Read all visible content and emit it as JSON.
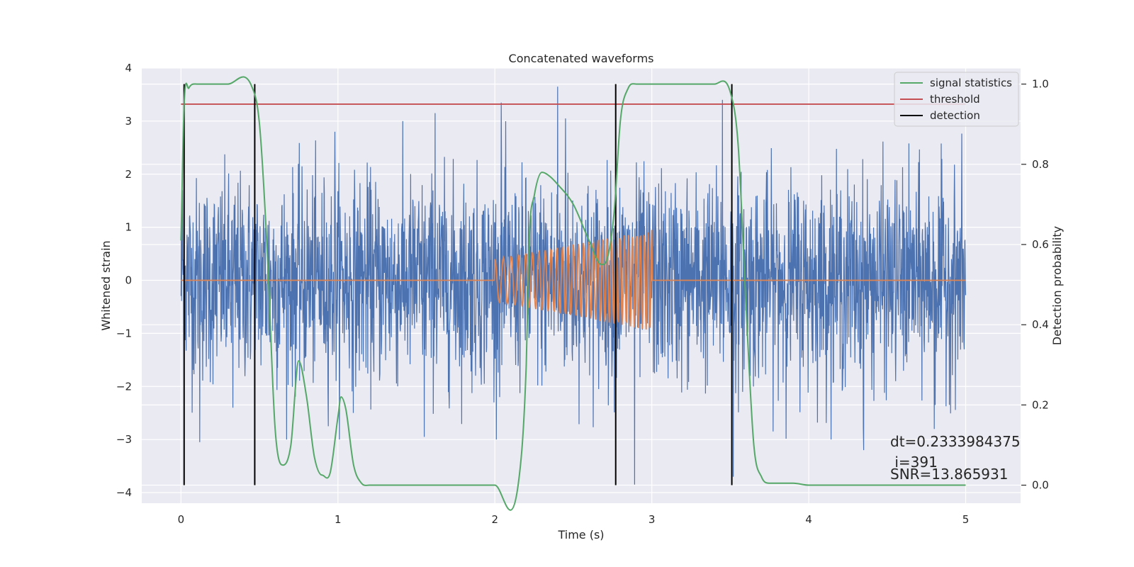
{
  "chart_data": {
    "type": "line",
    "title": "Concatenated waveforms",
    "xlabel": "Time (s)",
    "ylabel_left": "Whitened strain",
    "ylabel_right": "Detection probability",
    "xlim": [
      -0.25,
      5.35
    ],
    "ylim_left": [
      -4.2,
      4.0
    ],
    "ylim_right": [
      -0.045,
      1.04
    ],
    "x_ticks": [
      0,
      1,
      2,
      3,
      4,
      5
    ],
    "x_tick_labels": [
      "0",
      "1",
      "2",
      "3",
      "4",
      "5"
    ],
    "y_left_ticks": [
      -4,
      -3,
      -2,
      -1,
      0,
      1,
      2,
      3,
      4
    ],
    "y_left_tick_labels": [
      "−4",
      "−3",
      "−2",
      "−1",
      "0",
      "1",
      "2",
      "3",
      "4"
    ],
    "y_right_ticks": [
      0.0,
      0.2,
      0.4,
      0.6,
      0.8,
      1.0
    ],
    "y_right_tick_labels": [
      "0.0",
      "0.2",
      "0.4",
      "0.6",
      "0.8",
      "1.0"
    ],
    "grid": true,
    "legend_position": "top-right",
    "legend": [
      {
        "label": "signal statistics",
        "color": "#55a868"
      },
      {
        "label": "threshold",
        "color": "#c44e52"
      },
      {
        "label": "detection",
        "color": "#000000"
      }
    ],
    "colors": {
      "noise": "#4c72b0",
      "injected_signal": "#dd8452",
      "signal_statistics": "#55a868",
      "threshold": "#c44e52",
      "detection": "#000000",
      "plot_background": "#eaeaf2",
      "grid": "#ffffff"
    },
    "noise_series": {
      "axis": "left",
      "x_range": [
        0,
        5
      ],
      "amplitude_typical": 2.5,
      "peaks": [
        {
          "x": 0.01,
          "y": 1.7
        },
        {
          "x": 0.12,
          "y": -3.05
        },
        {
          "x": 0.33,
          "y": -2.4
        },
        {
          "x": 0.98,
          "y": 2.8
        },
        {
          "x": 1.55,
          "y": -2.95
        },
        {
          "x": 1.62,
          "y": 3.15
        },
        {
          "x": 2.04,
          "y": 3.35
        },
        {
          "x": 2.4,
          "y": 3.65
        },
        {
          "x": 2.45,
          "y": 3.05
        },
        {
          "x": 2.89,
          "y": -3.85
        },
        {
          "x": 3.45,
          "y": 3.4
        },
        {
          "x": 3.52,
          "y": -3.7
        },
        {
          "x": 4.35,
          "y": -3.2
        },
        {
          "x": 4.8,
          "y": -2.8
        }
      ]
    },
    "injected_signal": {
      "axis": "left",
      "x_start": 2.0,
      "x_end": 3.0,
      "amplitude_start": 0.4,
      "amplitude_end": 0.95,
      "baseline": 0.0
    },
    "signal_statistics": {
      "axis": "right",
      "x": [
        0,
        0.02,
        0.05,
        0.1,
        0.3,
        0.45,
        0.5,
        0.55,
        0.6,
        0.65,
        0.7,
        0.75,
        0.8,
        0.85,
        0.9,
        0.95,
        1.0,
        1.02,
        1.05,
        1.1,
        1.15,
        1.2,
        1.5,
        2.0,
        2.15,
        2.2,
        2.22,
        2.25,
        2.3,
        2.35,
        2.4,
        2.5,
        2.6,
        2.68,
        2.72,
        2.76,
        2.8,
        2.85,
        2.9,
        3.0,
        3.4,
        3.5,
        3.55,
        3.6,
        3.65,
        3.7,
        3.75,
        3.9,
        4.0,
        5.0
      ],
      "y": [
        0.61,
        0.95,
        0.99,
        1.0,
        1.0,
        0.995,
        0.9,
        0.58,
        0.14,
        0.05,
        0.1,
        0.31,
        0.22,
        0.07,
        0.025,
        0.03,
        0.17,
        0.22,
        0.19,
        0.05,
        0.005,
        0.0,
        0.0,
        0.0,
        0.005,
        0.3,
        0.62,
        0.72,
        0.78,
        0.77,
        0.75,
        0.7,
        0.61,
        0.55,
        0.57,
        0.68,
        0.91,
        0.99,
        1.0,
        1.0,
        1.0,
        0.98,
        0.85,
        0.45,
        0.1,
        0.02,
        0.005,
        0.005,
        0.0,
        0.0
      ]
    },
    "threshold": {
      "axis": "right",
      "value": 0.95,
      "x_range": [
        0,
        5
      ]
    },
    "detections": [
      0.02,
      0.47,
      2.77,
      3.51
    ],
    "detection_y_range": [
      0.0,
      1.0
    ],
    "annotations": {
      "dt": "dt=0.2333984375",
      "i": " i=391",
      "snr": "SNR=13.865931"
    }
  }
}
